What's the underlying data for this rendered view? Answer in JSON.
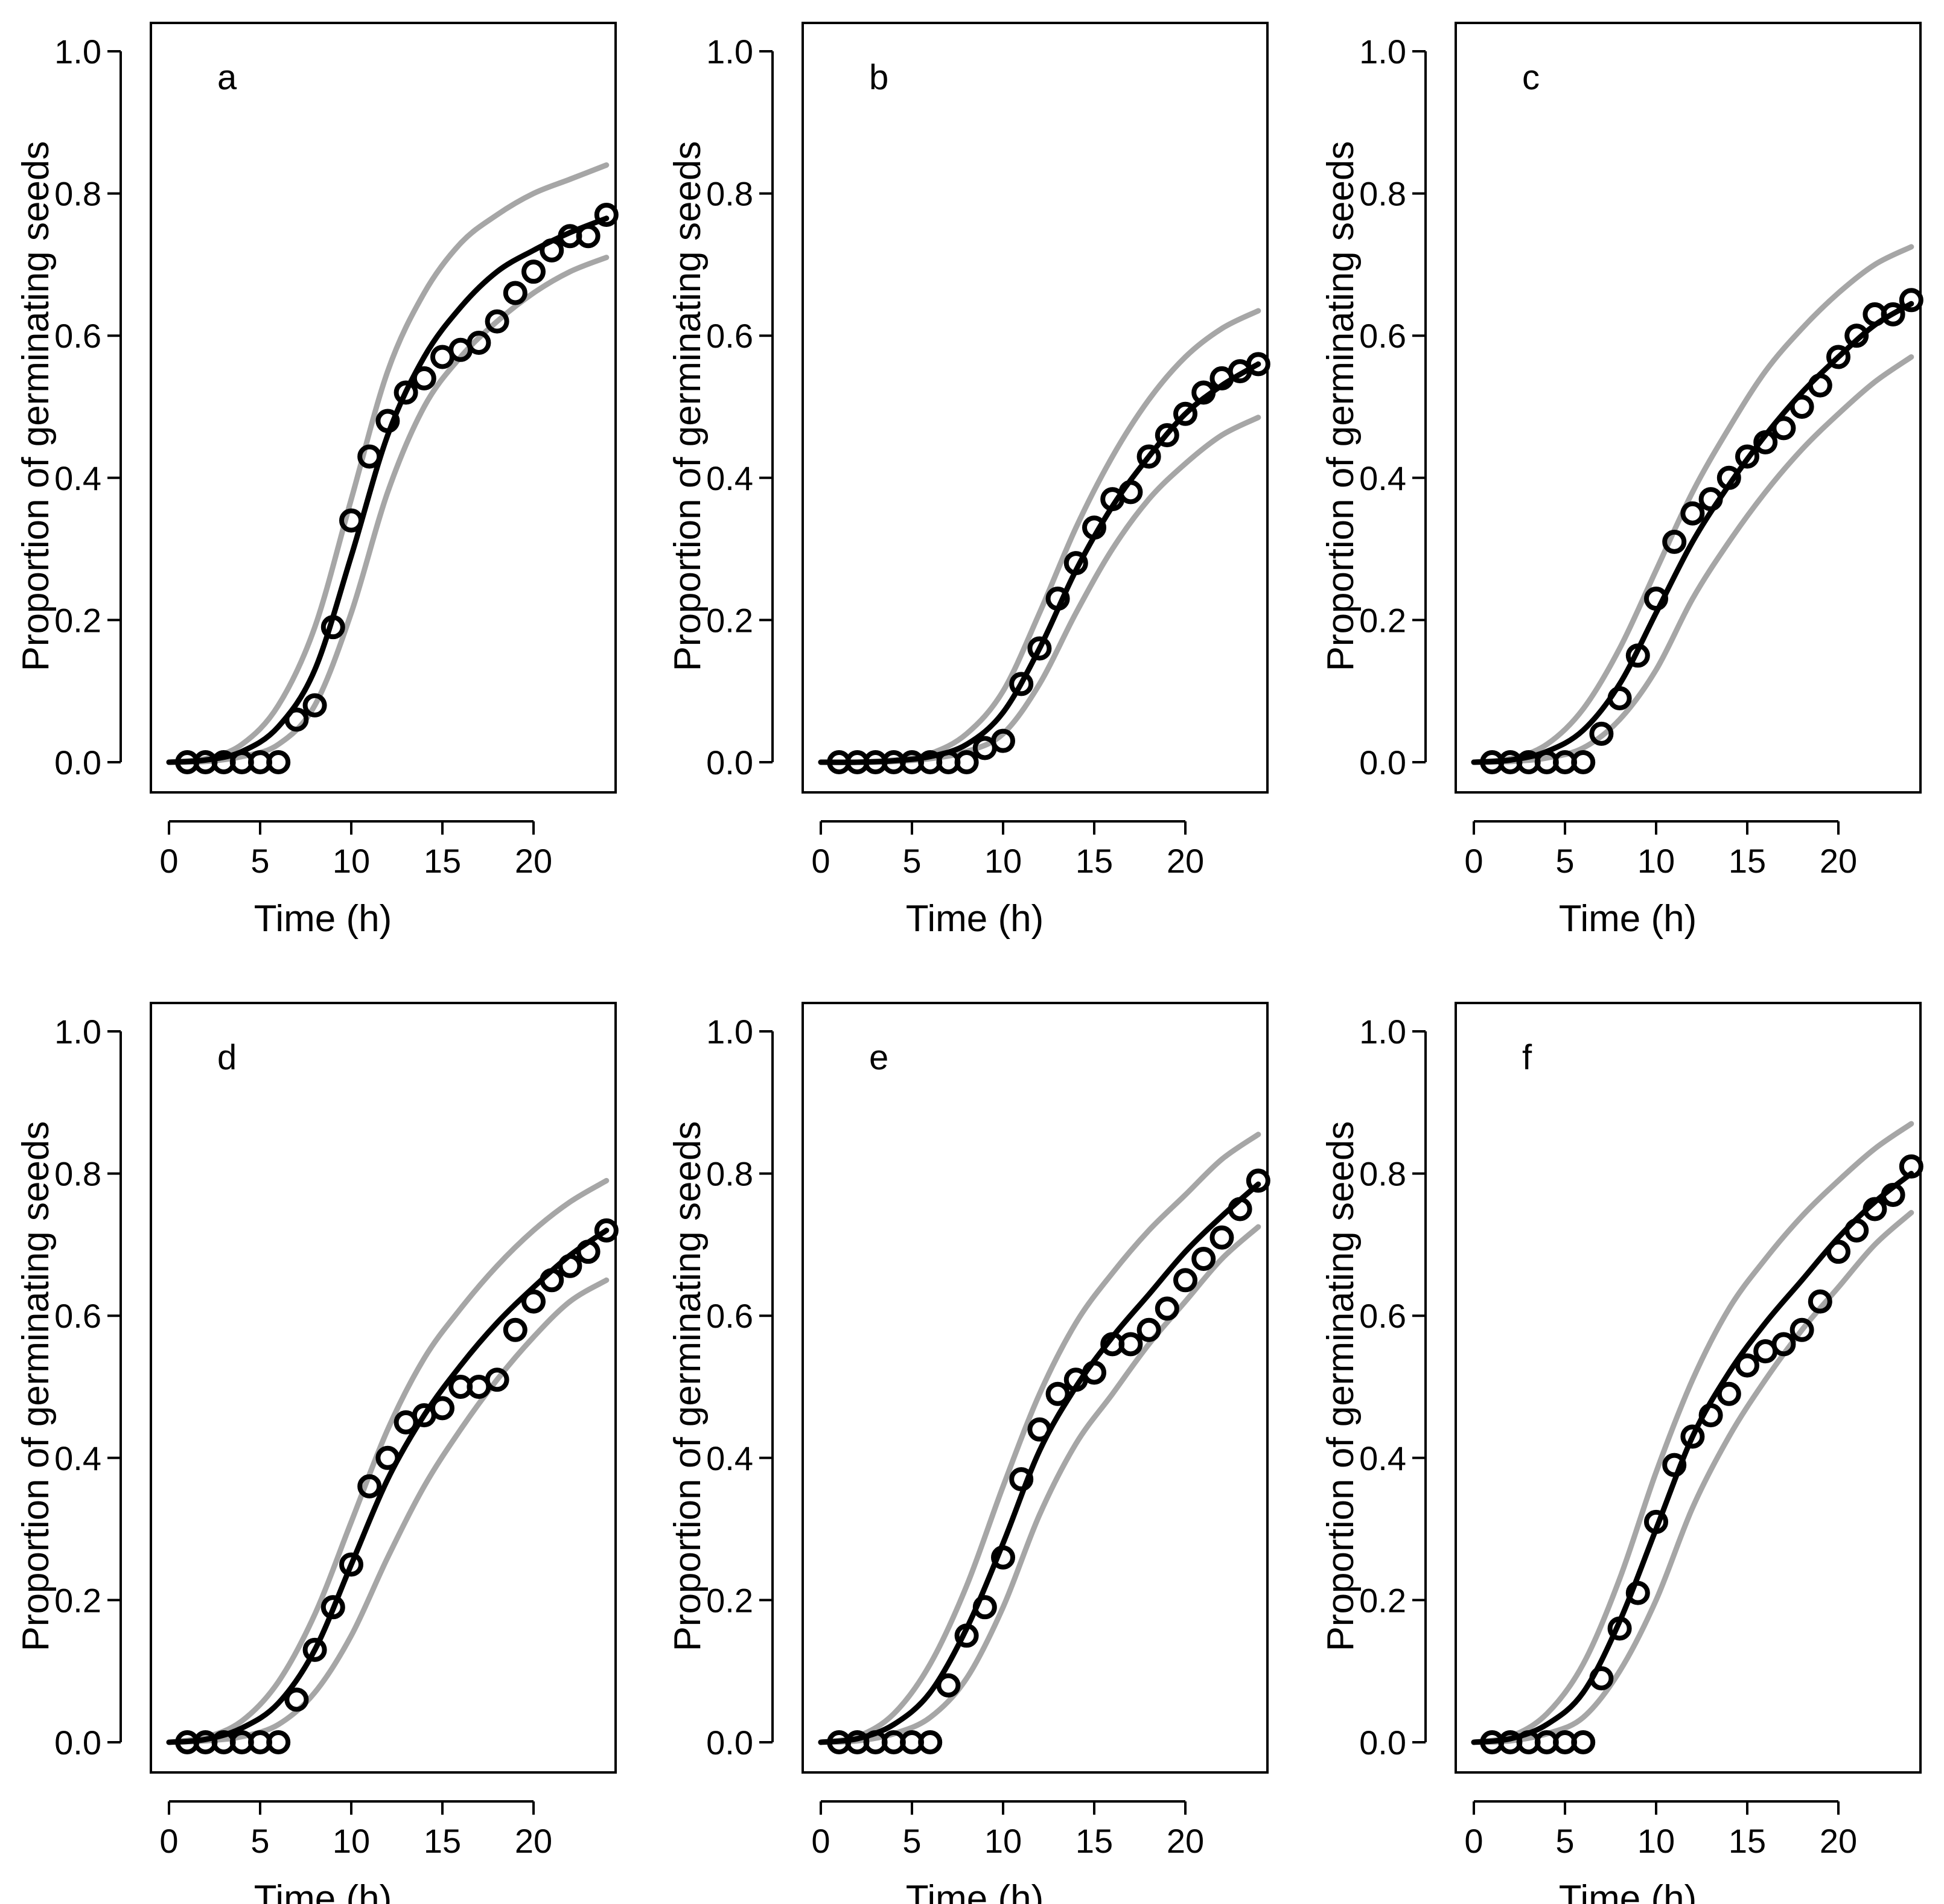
{
  "figure": {
    "x_axis_label": "Time (h)",
    "y_axis_label": "Proportion of germinating seeds",
    "colors": {
      "observed": "#000000",
      "fit": "#000000",
      "interval": "#a6a6a6",
      "axis": "#000000"
    }
  },
  "chart_data": [
    {
      "panel": "a",
      "type": "scatter",
      "xlabel": "Time (h)",
      "ylabel": "Proportion of germinating seeds",
      "xlim": [
        0,
        24.5
      ],
      "ylim": [
        0,
        1.0
      ],
      "xticks": [
        0,
        5,
        10,
        15,
        20
      ],
      "yticks": [
        0.0,
        0.2,
        0.4,
        0.6,
        0.8,
        1.0
      ],
      "observed": {
        "x": [
          1,
          2,
          3,
          4,
          5,
          6,
          7,
          8,
          9,
          10,
          11,
          12,
          13,
          14,
          15,
          16,
          17,
          18,
          19,
          20,
          21,
          22,
          23,
          24
        ],
        "y": [
          0,
          0,
          0,
          0,
          0,
          0,
          0.06,
          0.08,
          0.19,
          0.34,
          0.43,
          0.48,
          0.52,
          0.54,
          0.57,
          0.58,
          0.59,
          0.62,
          0.66,
          0.69,
          0.72,
          0.74,
          0.74,
          0.77
        ]
      },
      "fit": {
        "name": "fitted",
        "x": [
          0,
          2,
          4,
          6,
          8,
          10,
          12,
          14,
          16,
          18,
          20,
          22,
          24
        ],
        "y": [
          0,
          0.003,
          0.015,
          0.05,
          0.13,
          0.29,
          0.46,
          0.57,
          0.64,
          0.69,
          0.72,
          0.745,
          0.765
        ]
      },
      "upper": {
        "name": "upper band",
        "x": [
          0,
          2,
          4,
          6,
          8,
          10,
          12,
          14,
          16,
          18,
          20,
          22,
          24
        ],
        "y": [
          0,
          0.005,
          0.025,
          0.08,
          0.19,
          0.37,
          0.55,
          0.66,
          0.73,
          0.77,
          0.8,
          0.82,
          0.84
        ]
      },
      "lower": {
        "name": "lower band",
        "x": [
          0,
          2,
          4,
          6,
          8,
          10,
          12,
          14,
          16,
          18,
          20,
          22,
          24
        ],
        "y": [
          0,
          0.001,
          0.008,
          0.025,
          0.08,
          0.21,
          0.38,
          0.5,
          0.57,
          0.62,
          0.66,
          0.69,
          0.71
        ]
      }
    },
    {
      "panel": "b",
      "type": "scatter",
      "xlabel": "Time (h)",
      "ylabel": "Proportion of germinating seeds",
      "xlim": [
        0,
        24.5
      ],
      "ylim": [
        0,
        1.0
      ],
      "xticks": [
        0,
        5,
        10,
        15,
        20
      ],
      "yticks": [
        0.0,
        0.2,
        0.4,
        0.6,
        0.8,
        1.0
      ],
      "observed": {
        "x": [
          1,
          2,
          3,
          4,
          5,
          6,
          7,
          8,
          9,
          10,
          11,
          12,
          13,
          14,
          15,
          16,
          17,
          18,
          19,
          20,
          21,
          22,
          23,
          24
        ],
        "y": [
          0,
          0,
          0,
          0,
          0,
          0,
          0,
          0,
          0.02,
          0.03,
          0.11,
          0.16,
          0.23,
          0.28,
          0.33,
          0.37,
          0.38,
          0.43,
          0.46,
          0.49,
          0.52,
          0.54,
          0.55,
          0.56
        ]
      },
      "fit": {
        "name": "fitted",
        "x": [
          0,
          2,
          4,
          6,
          8,
          10,
          12,
          14,
          16,
          18,
          20,
          22,
          24
        ],
        "y": [
          0,
          0,
          0.002,
          0.008,
          0.025,
          0.07,
          0.16,
          0.27,
          0.36,
          0.43,
          0.49,
          0.53,
          0.56
        ]
      },
      "upper": {
        "name": "upper band",
        "x": [
          0,
          2,
          4,
          6,
          8,
          10,
          12,
          14,
          16,
          18,
          20,
          22,
          24
        ],
        "y": [
          0,
          0,
          0.003,
          0.012,
          0.04,
          0.1,
          0.21,
          0.33,
          0.43,
          0.51,
          0.57,
          0.61,
          0.635
        ]
      },
      "lower": {
        "name": "lower band",
        "x": [
          0,
          2,
          4,
          6,
          8,
          10,
          12,
          14,
          16,
          18,
          20,
          22,
          24
        ],
        "y": [
          0,
          0,
          0.001,
          0.005,
          0.015,
          0.04,
          0.11,
          0.21,
          0.3,
          0.37,
          0.42,
          0.46,
          0.485
        ]
      }
    },
    {
      "panel": "c",
      "type": "scatter",
      "xlabel": "Time (h)",
      "ylabel": "Proportion of germinating seeds",
      "xlim": [
        0,
        24.5
      ],
      "ylim": [
        0,
        1.0
      ],
      "xticks": [
        0,
        5,
        10,
        15,
        20
      ],
      "yticks": [
        0.0,
        0.2,
        0.4,
        0.6,
        0.8,
        1.0
      ],
      "observed": {
        "x": [
          1,
          2,
          3,
          4,
          5,
          6,
          7,
          8,
          9,
          10,
          11,
          12,
          13,
          14,
          15,
          16,
          17,
          18,
          19,
          20,
          21,
          22,
          23,
          24
        ],
        "y": [
          0,
          0,
          0,
          0,
          0,
          0,
          0.04,
          0.09,
          0.15,
          0.23,
          0.31,
          0.35,
          0.37,
          0.4,
          0.43,
          0.45,
          0.47,
          0.5,
          0.53,
          0.57,
          0.6,
          0.63,
          0.63,
          0.65
        ]
      },
      "fit": {
        "name": "fitted",
        "x": [
          0,
          2,
          4,
          6,
          8,
          10,
          12,
          14,
          16,
          18,
          20,
          22,
          24
        ],
        "y": [
          0,
          0.003,
          0.015,
          0.045,
          0.11,
          0.21,
          0.31,
          0.39,
          0.46,
          0.52,
          0.57,
          0.615,
          0.645
        ]
      },
      "upper": {
        "name": "upper band",
        "x": [
          0,
          2,
          4,
          6,
          8,
          10,
          12,
          14,
          16,
          18,
          20,
          22,
          24
        ],
        "y": [
          0,
          0.005,
          0.025,
          0.075,
          0.16,
          0.27,
          0.38,
          0.47,
          0.55,
          0.61,
          0.66,
          0.7,
          0.725
        ]
      },
      "lower": {
        "name": "lower band",
        "x": [
          0,
          2,
          4,
          6,
          8,
          10,
          12,
          14,
          16,
          18,
          20,
          22,
          24
        ],
        "y": [
          0,
          0.001,
          0.006,
          0.02,
          0.06,
          0.13,
          0.23,
          0.31,
          0.38,
          0.44,
          0.49,
          0.535,
          0.57
        ]
      }
    },
    {
      "panel": "d",
      "type": "scatter",
      "xlabel": "Time (h)",
      "ylabel": "Proportion of germinating seeds",
      "xlim": [
        0,
        24.5
      ],
      "ylim": [
        0,
        1.0
      ],
      "xticks": [
        0,
        5,
        10,
        15,
        20
      ],
      "yticks": [
        0.0,
        0.2,
        0.4,
        0.6,
        0.8,
        1.0
      ],
      "observed": {
        "x": [
          1,
          2,
          3,
          4,
          5,
          6,
          7,
          8,
          9,
          10,
          11,
          12,
          13,
          14,
          15,
          16,
          17,
          18,
          19,
          20,
          21,
          22,
          23,
          24
        ],
        "y": [
          0,
          0,
          0,
          0,
          0,
          0,
          0.06,
          0.13,
          0.19,
          0.25,
          0.36,
          0.4,
          0.45,
          0.46,
          0.47,
          0.5,
          0.5,
          0.51,
          0.58,
          0.62,
          0.65,
          0.67,
          0.69,
          0.72
        ]
      },
      "fit": {
        "name": "fitted",
        "x": [
          0,
          2,
          4,
          6,
          8,
          10,
          12,
          14,
          16,
          18,
          20,
          22,
          24
        ],
        "y": [
          0,
          0.004,
          0.02,
          0.055,
          0.13,
          0.25,
          0.37,
          0.46,
          0.53,
          0.59,
          0.64,
          0.685,
          0.72
        ]
      },
      "upper": {
        "name": "upper band",
        "x": [
          0,
          2,
          4,
          6,
          8,
          10,
          12,
          14,
          16,
          18,
          20,
          22,
          24
        ],
        "y": [
          0,
          0.007,
          0.03,
          0.085,
          0.18,
          0.31,
          0.44,
          0.54,
          0.61,
          0.67,
          0.72,
          0.76,
          0.79
        ]
      },
      "lower": {
        "name": "lower band",
        "x": [
          0,
          2,
          4,
          6,
          8,
          10,
          12,
          14,
          16,
          18,
          20,
          22,
          24
        ],
        "y": [
          0,
          0.002,
          0.008,
          0.025,
          0.07,
          0.15,
          0.26,
          0.36,
          0.44,
          0.51,
          0.57,
          0.62,
          0.65
        ]
      }
    },
    {
      "panel": "e",
      "type": "scatter",
      "xlabel": "Time (h)",
      "ylabel": "Proportion of germinating seeds",
      "xlim": [
        0,
        24.5
      ],
      "ylim": [
        0,
        1.0
      ],
      "xticks": [
        0,
        5,
        10,
        15,
        20
      ],
      "yticks": [
        0.0,
        0.2,
        0.4,
        0.6,
        0.8,
        1.0
      ],
      "observed": {
        "x": [
          1,
          2,
          3,
          4,
          5,
          6,
          7,
          8,
          9,
          10,
          11,
          12,
          13,
          14,
          15,
          16,
          17,
          18,
          19,
          20,
          21,
          22,
          23,
          24
        ],
        "y": [
          0,
          0,
          0,
          0,
          0,
          0,
          0.08,
          0.15,
          0.19,
          0.26,
          0.37,
          0.44,
          0.49,
          0.51,
          0.52,
          0.56,
          0.56,
          0.58,
          0.61,
          0.65,
          0.68,
          0.71,
          0.75,
          0.79
        ]
      },
      "fit": {
        "name": "fitted",
        "x": [
          0,
          2,
          4,
          6,
          8,
          10,
          12,
          14,
          16,
          18,
          20,
          22,
          24
        ],
        "y": [
          0,
          0.005,
          0.025,
          0.07,
          0.16,
          0.28,
          0.41,
          0.5,
          0.57,
          0.63,
          0.69,
          0.74,
          0.785
        ]
      },
      "upper": {
        "name": "upper band",
        "x": [
          0,
          2,
          4,
          6,
          8,
          10,
          12,
          14,
          16,
          18,
          20,
          22,
          24
        ],
        "y": [
          0,
          0.008,
          0.04,
          0.11,
          0.22,
          0.36,
          0.49,
          0.59,
          0.66,
          0.72,
          0.77,
          0.82,
          0.855
        ]
      },
      "lower": {
        "name": "lower band",
        "x": [
          0,
          2,
          4,
          6,
          8,
          10,
          12,
          14,
          16,
          18,
          20,
          22,
          24
        ],
        "y": [
          0,
          0.002,
          0.012,
          0.035,
          0.09,
          0.19,
          0.32,
          0.42,
          0.49,
          0.56,
          0.62,
          0.68,
          0.725
        ]
      }
    },
    {
      "panel": "f",
      "type": "scatter",
      "xlabel": "Time (h)",
      "ylabel": "Proportion of germinating seeds",
      "xlim": [
        0,
        24.5
      ],
      "ylim": [
        0,
        1.0
      ],
      "xticks": [
        0,
        5,
        10,
        15,
        20
      ],
      "yticks": [
        0.0,
        0.2,
        0.4,
        0.6,
        0.8,
        1.0
      ],
      "observed": {
        "x": [
          1,
          2,
          3,
          4,
          5,
          6,
          7,
          8,
          9,
          10,
          11,
          12,
          13,
          14,
          15,
          16,
          17,
          18,
          19,
          20,
          21,
          22,
          23,
          24
        ],
        "y": [
          0,
          0,
          0,
          0,
          0,
          0,
          0.09,
          0.16,
          0.21,
          0.31,
          0.39,
          0.43,
          0.46,
          0.49,
          0.53,
          0.55,
          0.56,
          0.58,
          0.62,
          0.69,
          0.72,
          0.75,
          0.77,
          0.81
        ]
      },
      "fit": {
        "name": "fitted",
        "x": [
          0,
          2,
          4,
          6,
          8,
          10,
          12,
          14,
          16,
          18,
          20,
          22,
          24
        ],
        "y": [
          0,
          0.005,
          0.025,
          0.07,
          0.17,
          0.3,
          0.43,
          0.52,
          0.59,
          0.65,
          0.71,
          0.76,
          0.8
        ]
      },
      "upper": {
        "name": "upper band",
        "x": [
          0,
          2,
          4,
          6,
          8,
          10,
          12,
          14,
          16,
          18,
          20,
          22,
          24
        ],
        "y": [
          0,
          0.008,
          0.04,
          0.11,
          0.23,
          0.38,
          0.51,
          0.61,
          0.68,
          0.74,
          0.79,
          0.835,
          0.87
        ]
      },
      "lower": {
        "name": "lower band",
        "x": [
          0,
          2,
          4,
          6,
          8,
          10,
          12,
          14,
          16,
          18,
          20,
          22,
          24
        ],
        "y": [
          0,
          0.002,
          0.012,
          0.035,
          0.1,
          0.2,
          0.33,
          0.43,
          0.51,
          0.58,
          0.64,
          0.7,
          0.745
        ]
      }
    }
  ]
}
